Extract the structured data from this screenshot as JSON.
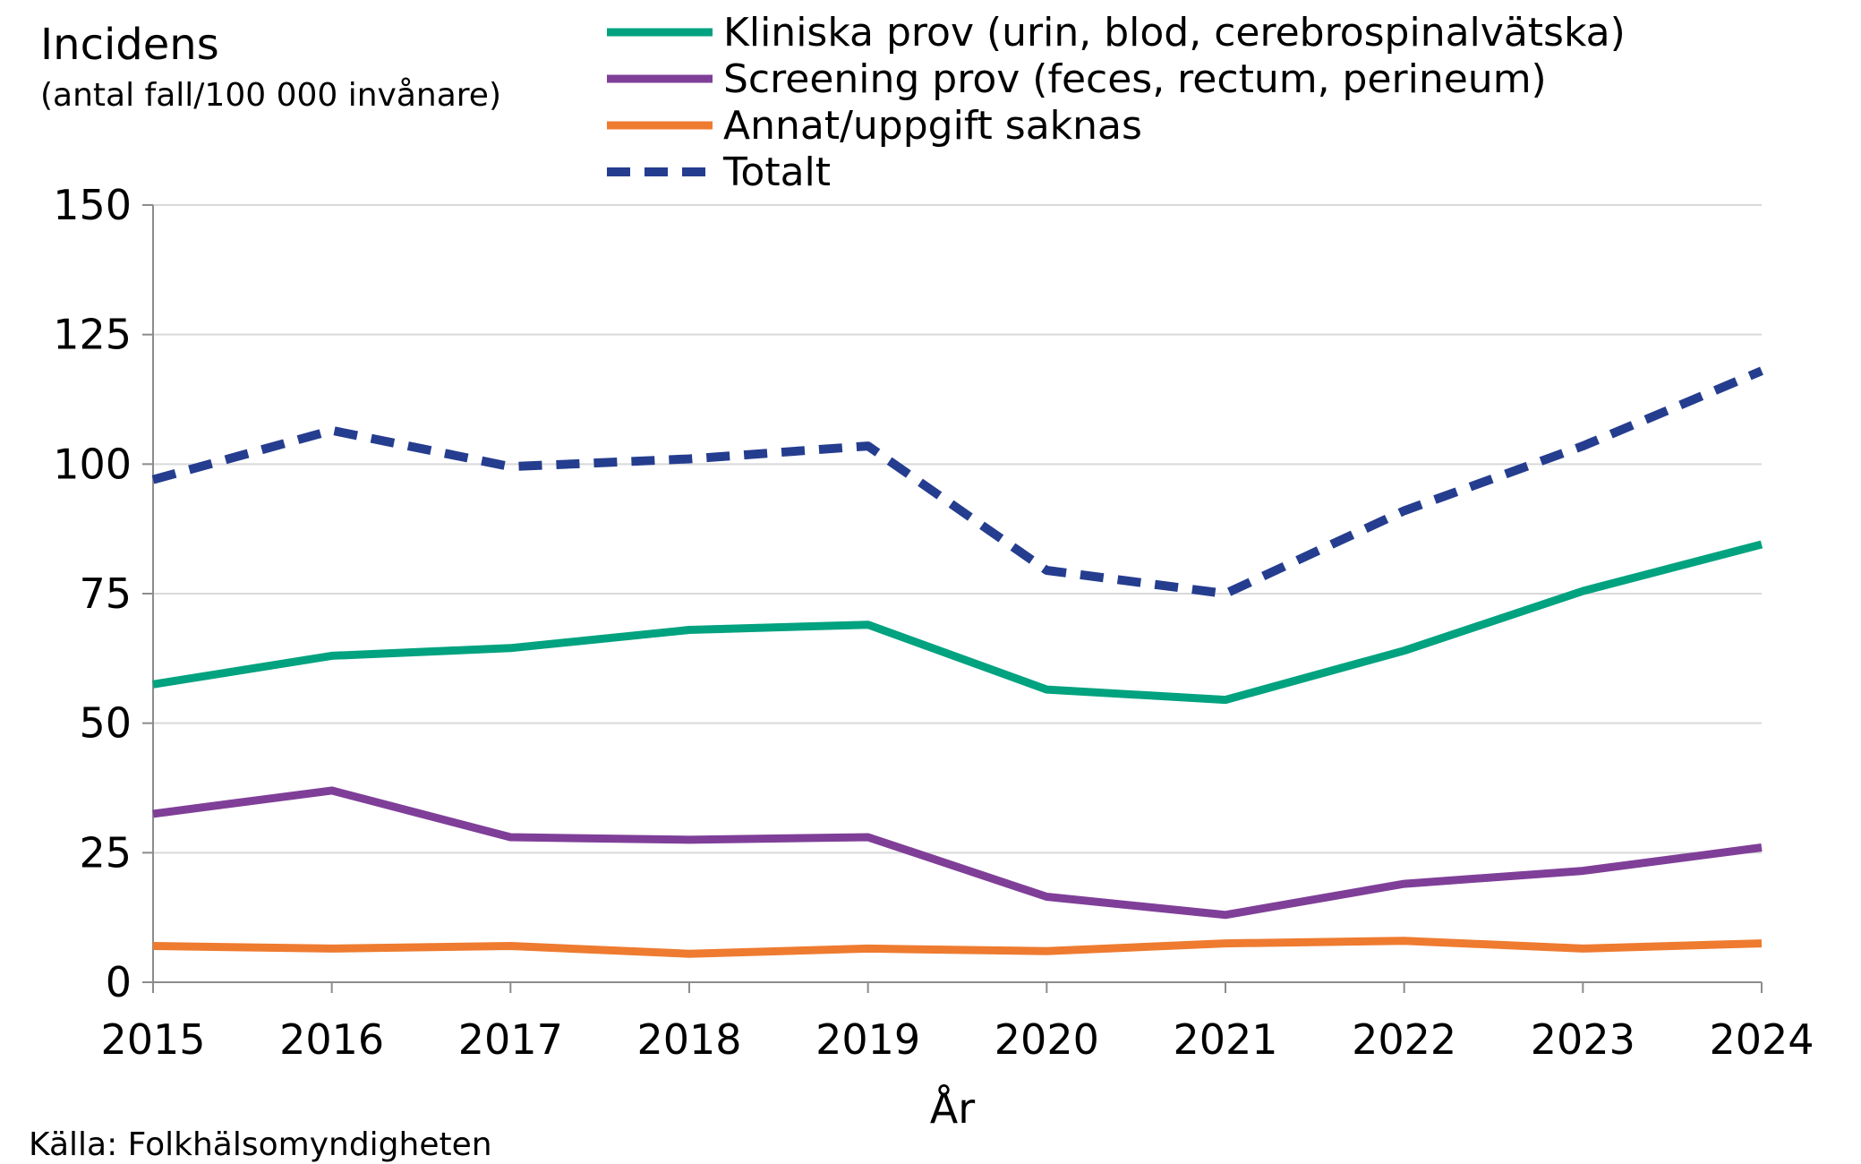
{
  "chart_data": {
    "type": "line",
    "title": "",
    "ylabel": "Incidens",
    "ylabel_sub": "(antal fall/100 000 invånare)",
    "xlabel": "År",
    "ylim": [
      0,
      150
    ],
    "yticks": [
      0,
      25,
      50,
      75,
      100,
      125,
      150
    ],
    "grid": true,
    "legend_position": "top",
    "x": [
      2015,
      2016,
      2017,
      2018,
      2019,
      2020,
      2021,
      2022,
      2023,
      2024
    ],
    "series": [
      {
        "name": "Kliniska prov (urin, blod, cerebrospinalvätska)",
        "color": "#00a27f",
        "dash": false,
        "values": [
          57.5,
          63,
          64.5,
          68,
          69,
          56.5,
          54.5,
          64,
          75.5,
          84.5
        ]
      },
      {
        "name": "Screening prov (feces, rectum, perineum)",
        "color": "#7f3f98",
        "dash": false,
        "values": [
          32.5,
          37,
          28,
          27.5,
          28,
          16.5,
          13,
          19,
          21.5,
          26
        ]
      },
      {
        "name": "Annat/uppgift saknas",
        "color": "#ee7b30",
        "dash": false,
        "values": [
          7,
          6.5,
          7,
          5.5,
          6.5,
          6,
          7.5,
          8,
          6.5,
          7.5
        ]
      },
      {
        "name": "Totalt",
        "color": "#253d8f",
        "dash": true,
        "values": [
          97,
          106.5,
          99.5,
          101,
          103.5,
          79.5,
          75,
          91,
          103.5,
          118
        ]
      }
    ]
  },
  "source": "Källa: Folkhälsomyndigheten"
}
